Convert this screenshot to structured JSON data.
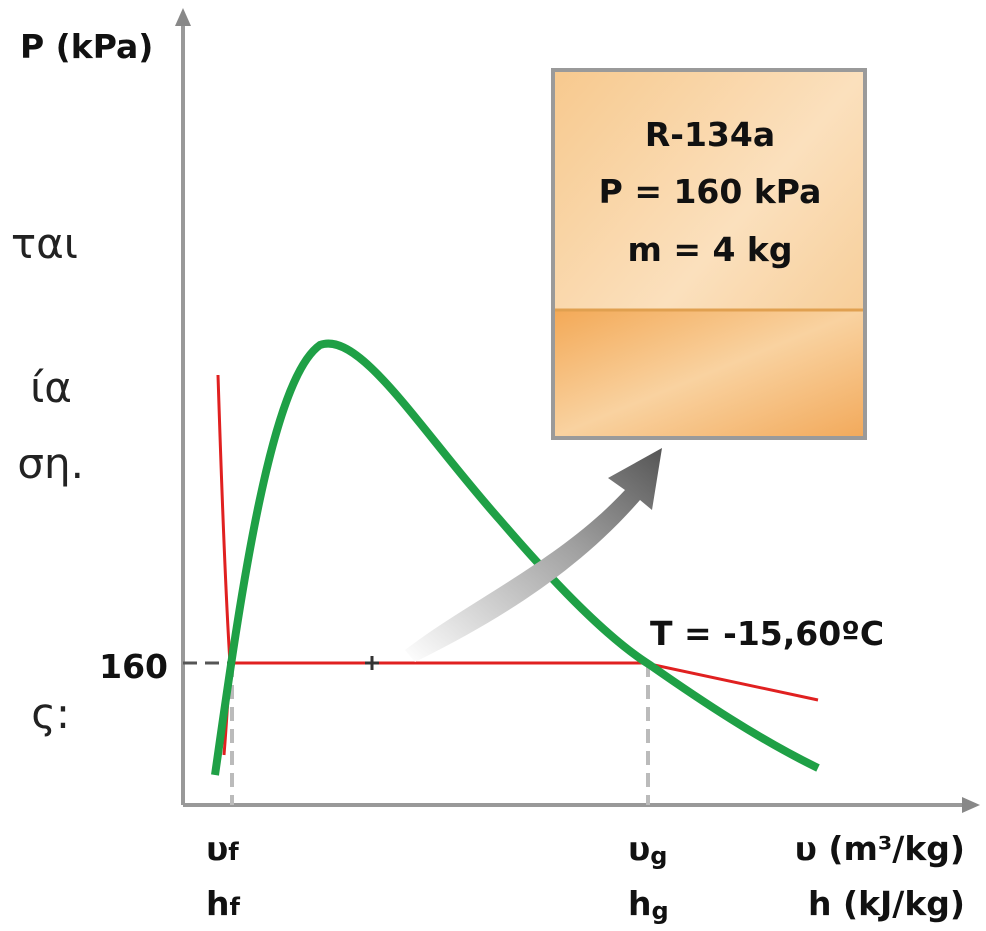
{
  "side_text": [
    "ται",
    "ία",
    "ση.",
    "ς:"
  ],
  "y_axis_label": "P (kPa)",
  "pressure_mark": "160",
  "temperature_label": "T = -15,60ºC",
  "box": {
    "lines": [
      "R-134a",
      "P = 160 kPa",
      "m = 4 kg"
    ]
  },
  "x_labels": {
    "vf": {
      "symbol": "υ",
      "sub": "f"
    },
    "hf": {
      "symbol": "h",
      "sub": "f"
    },
    "vg": {
      "symbol": "υ",
      "sub": "g"
    },
    "hg": {
      "symbol": "h",
      "sub": "g"
    }
  },
  "x_axis_label_v": "υ (m³/kg)",
  "x_axis_label_h": "h (kJ/kg)"
}
